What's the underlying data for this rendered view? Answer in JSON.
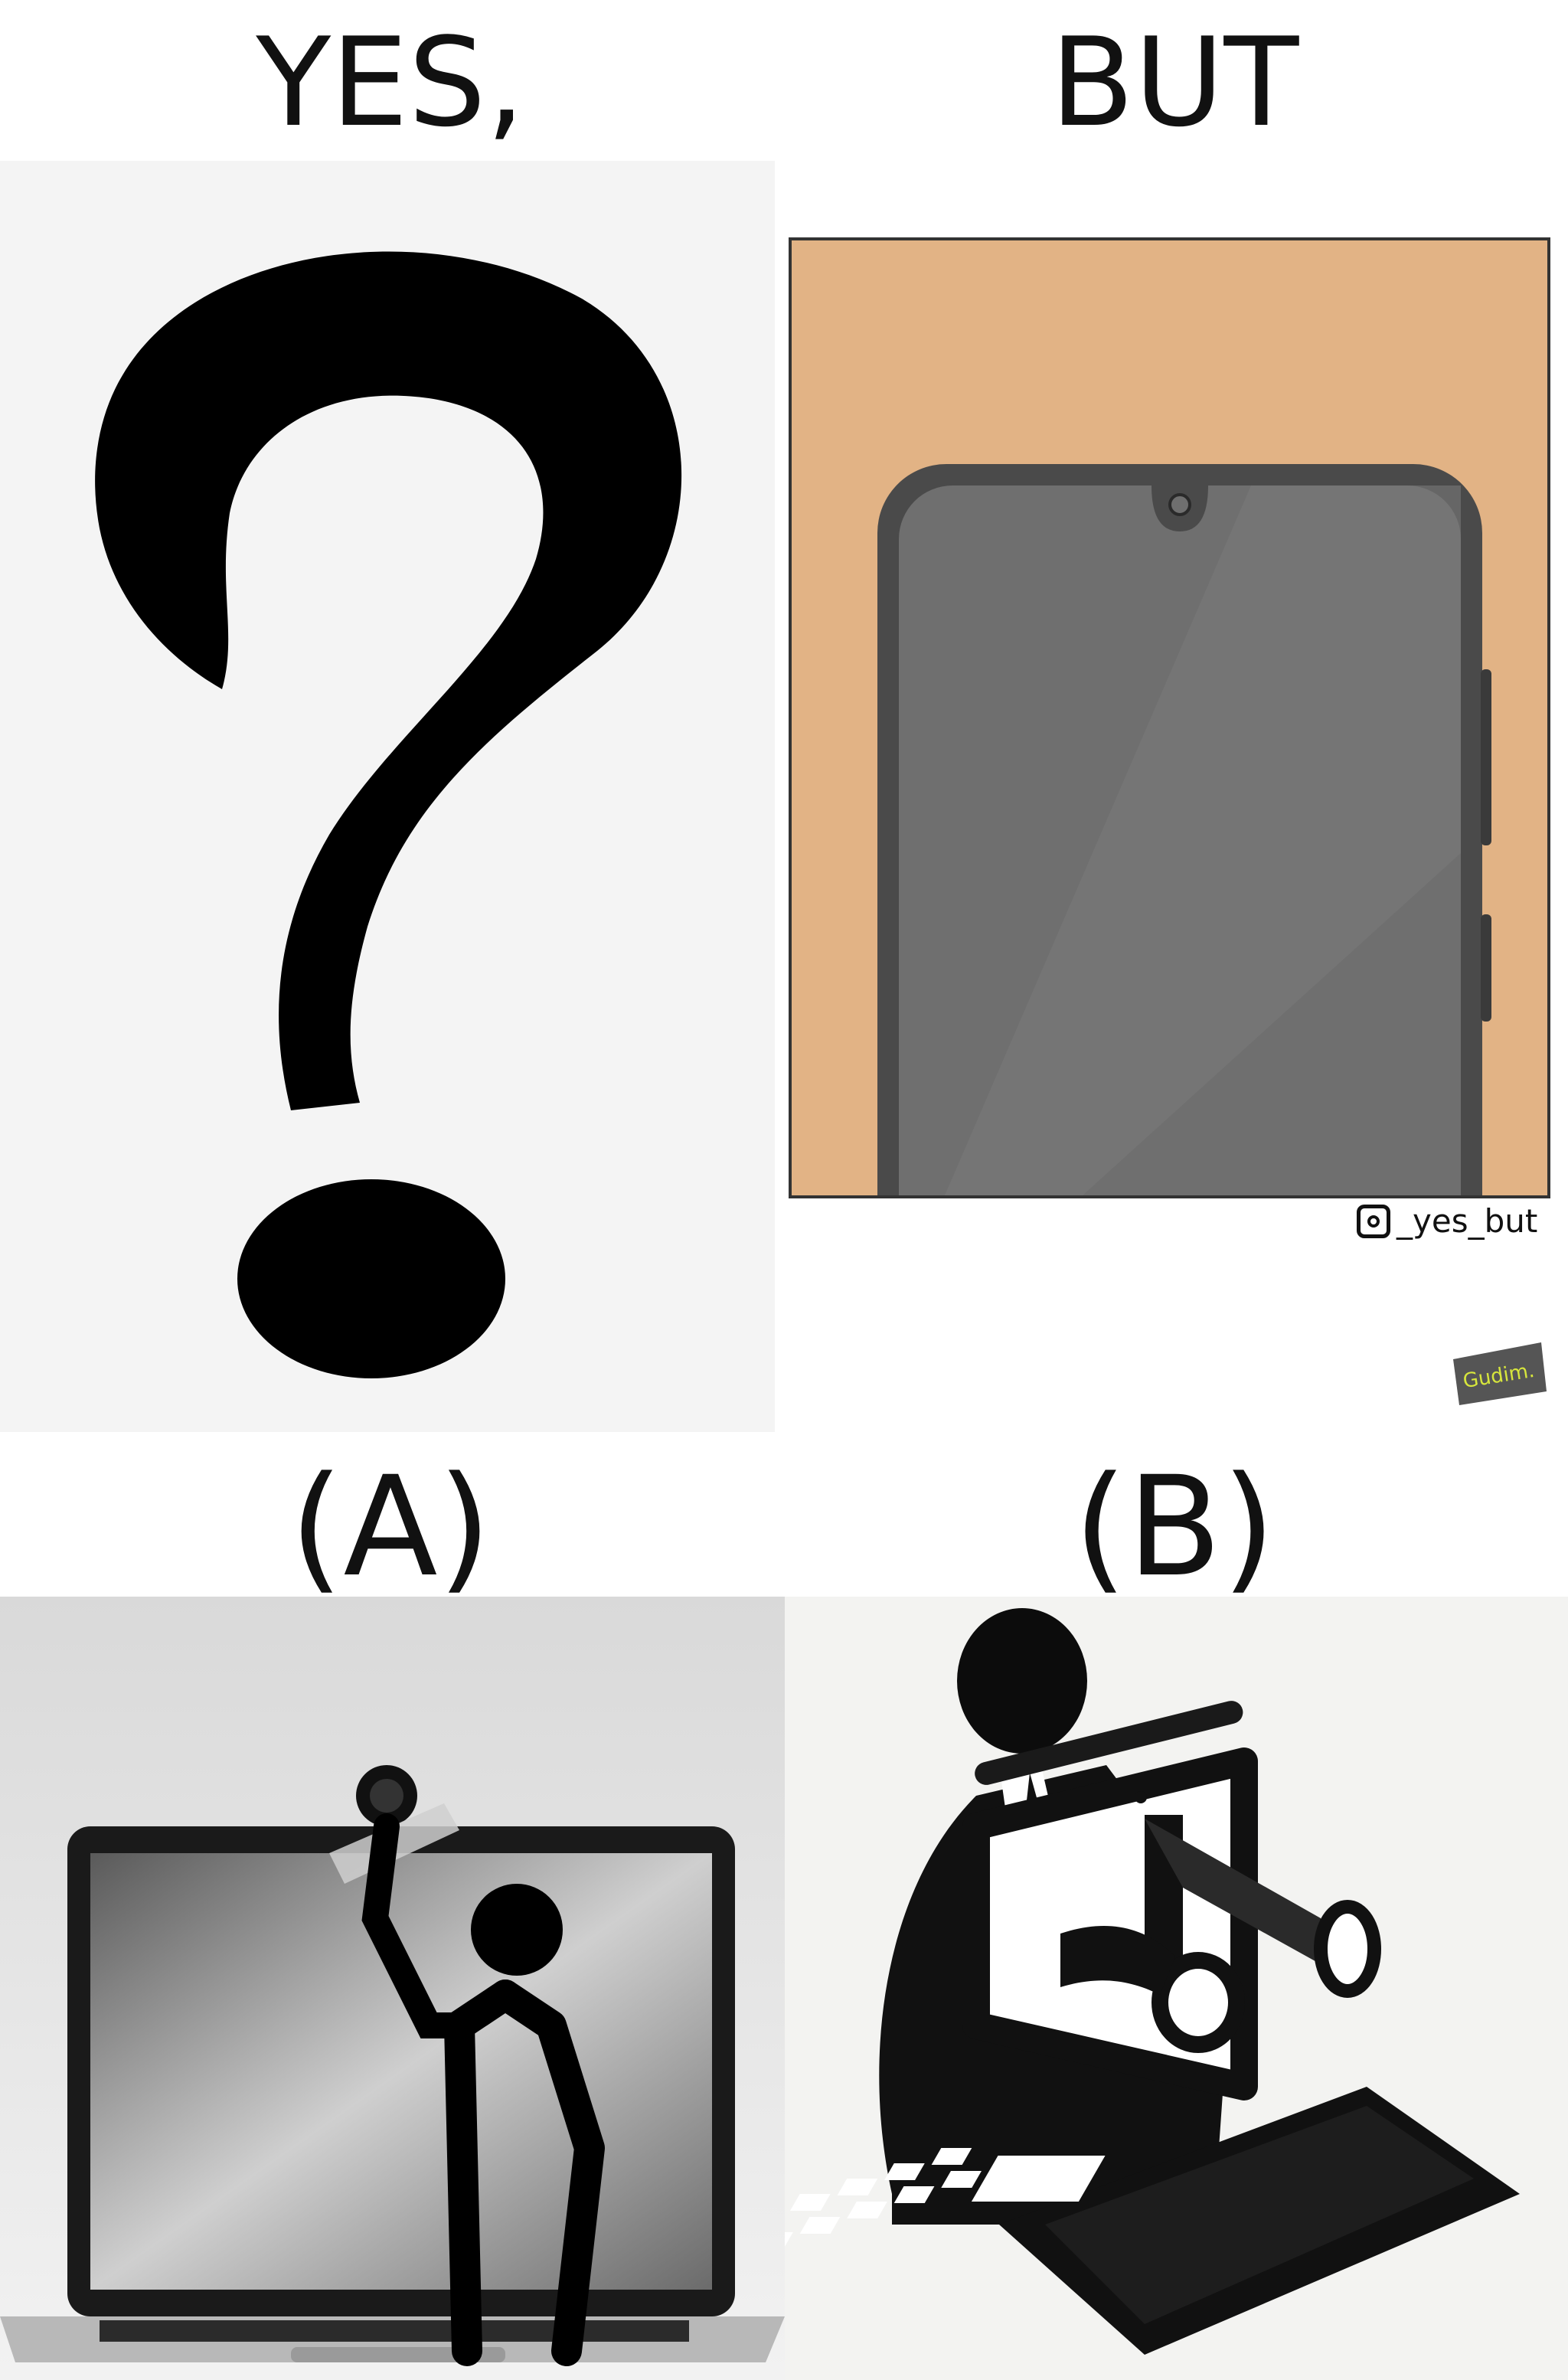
{
  "headings": {
    "left": "YES,",
    "right": "BUT"
  },
  "labels": {
    "a": "(A)",
    "b": "(B)"
  },
  "watermark": {
    "handle": "_yes_but",
    "signature": "Gudim."
  },
  "icons": {
    "handle_icon": "instagram-icon"
  },
  "colors": {
    "panel_b_background": "#e2b385",
    "phone_body": "#4a4a4a",
    "phone_screen": "#6f6f6f"
  }
}
